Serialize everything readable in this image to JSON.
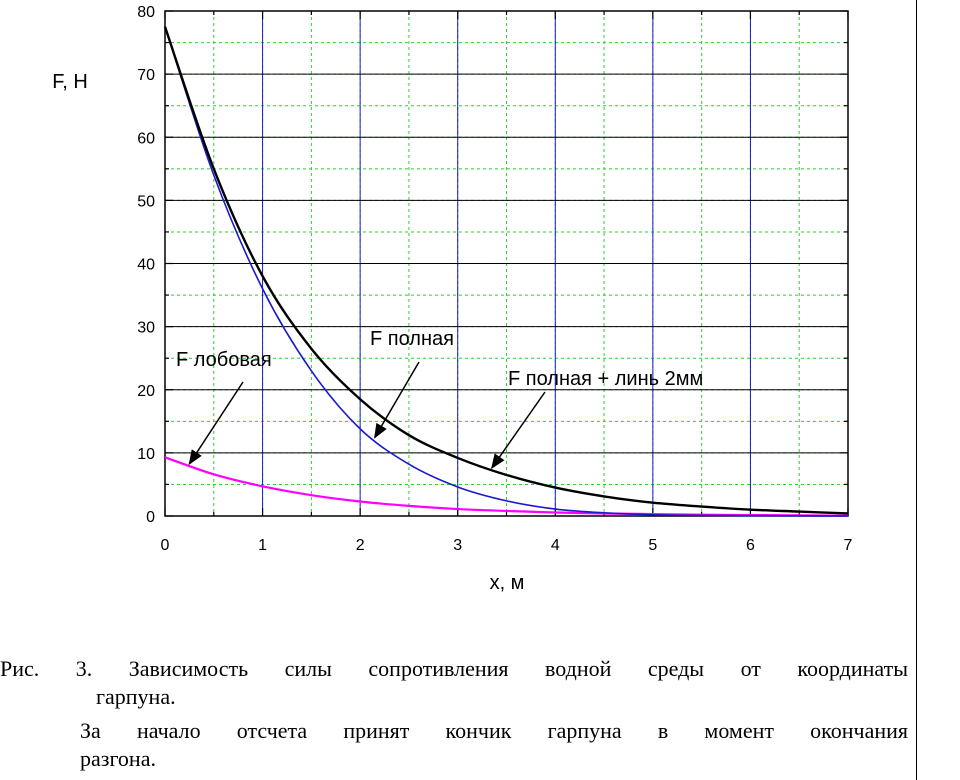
{
  "chart_data": {
    "type": "line",
    "ylabel": "F, H",
    "xlabel": "x, м",
    "xlim": [
      0,
      7
    ],
    "ylim": [
      0,
      80
    ],
    "xticks": [
      "0",
      "1",
      "2",
      "3",
      "4",
      "5",
      "6",
      "7"
    ],
    "yticks": [
      "0",
      "10",
      "20",
      "30",
      "40",
      "50",
      "60",
      "70",
      "80"
    ],
    "grid": true,
    "grid_color": "#33cc33",
    "series": [
      {
        "name": "F лобовая",
        "color": "#ff00ff",
        "x": [
          0,
          0.5,
          1,
          1.5,
          2,
          2.5,
          3,
          3.5,
          4,
          4.5,
          5,
          5.5,
          6,
          6.5,
          7
        ],
        "y": [
          9.3,
          6.6,
          4.7,
          3.3,
          2.3,
          1.6,
          1.1,
          0.8,
          0.55,
          0.4,
          0.3,
          0.2,
          0.15,
          0.1,
          0.05
        ]
      },
      {
        "name": "F полная",
        "color": "#1a1acc",
        "x": [
          0,
          0.5,
          1,
          1.5,
          2,
          2.5,
          3,
          3.5,
          4,
          4.5,
          5,
          5.5,
          6,
          6.5,
          7
        ],
        "y": [
          77.5,
          54,
          36,
          23,
          13.8,
          8.2,
          4.6,
          2.4,
          1.1,
          0.5,
          0.2,
          0.1,
          0.05,
          0.02,
          0
        ]
      },
      {
        "name": "F полная + линь 2мм",
        "color": "#000000",
        "x": [
          0,
          0.5,
          1,
          1.5,
          2,
          2.5,
          3,
          3.5,
          4,
          4.5,
          5,
          5.5,
          6,
          6.5,
          7
        ],
        "y": [
          77.5,
          55,
          38,
          26.5,
          18.5,
          12.8,
          9.2,
          6.5,
          4.5,
          3.1,
          2.1,
          1.5,
          1.0,
          0.7,
          0.4
        ]
      }
    ],
    "annotations": [
      {
        "text": "F лобовая",
        "series": 0
      },
      {
        "text": "F полная",
        "series": 1
      },
      {
        "text": "F полная + линь 2мм",
        "series": 2
      }
    ]
  },
  "caption": {
    "line1": "Рис. 3. Зависимость силы сопротивления водной среды от координаты",
    "line2": "гарпуна.",
    "line3": "За начало отсчета принят кончик гарпуна в момент окончания",
    "line4": "разгона."
  }
}
